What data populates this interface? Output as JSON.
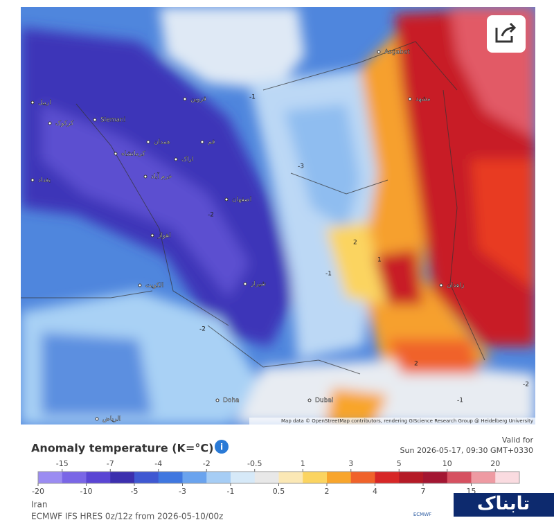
{
  "map": {
    "city_labels": [
      "Slemani",
      "Asgabat",
      "بغداد",
      "کرکوک",
      "اربیل",
      "کرمانشاه",
      "همدان",
      "قزوین",
      "اراک",
      "قم",
      "اصفهان",
      "شیراز",
      "مشهد",
      "زاهدان",
      "الکویت",
      "الریاض",
      "Doha",
      "Dubai",
      "خرم آباد",
      "اهواز"
    ],
    "contour_labels": [
      "-1",
      "-2",
      "-3",
      "-1",
      "-2",
      "1",
      "2",
      "-1",
      "-2",
      "2"
    ],
    "attribution": "Map data © OpenStreetMap contributors, rendering GIScience Research Group @ Heidelberg University"
  },
  "legend": {
    "title": "Anomaly temperature (K=°C)",
    "valid_label": "Valid for",
    "valid_time": "Sun 2026-05-17, 09:30 GMT+0330",
    "ticks": [
      -20,
      -15,
      -10,
      -7,
      -5,
      -4,
      -3,
      -2,
      -1,
      -0.5,
      0.5,
      1,
      2,
      3,
      4,
      5,
      7,
      10,
      15,
      20
    ],
    "colors": [
      "#9b8cf2",
      "#7a66e6",
      "#5a45d4",
      "#3c2fae",
      "#3f58d2",
      "#3f77e0",
      "#6aa3ee",
      "#a6cdf5",
      "#d6e9f8",
      "#e8e8e8",
      "#fbe8b5",
      "#fbd460",
      "#f8a52c",
      "#f0622a",
      "#d72626",
      "#b51a26",
      "#a31632",
      "#d65060",
      "#ee9aa2",
      "#fadbe0"
    ]
  },
  "footer": {
    "region": "Iran",
    "model": "ECMWF IFS HRES 0z/12z from 2026-05-10/00z",
    "logo": "ECMWF"
  },
  "watermark": "تابناک"
}
